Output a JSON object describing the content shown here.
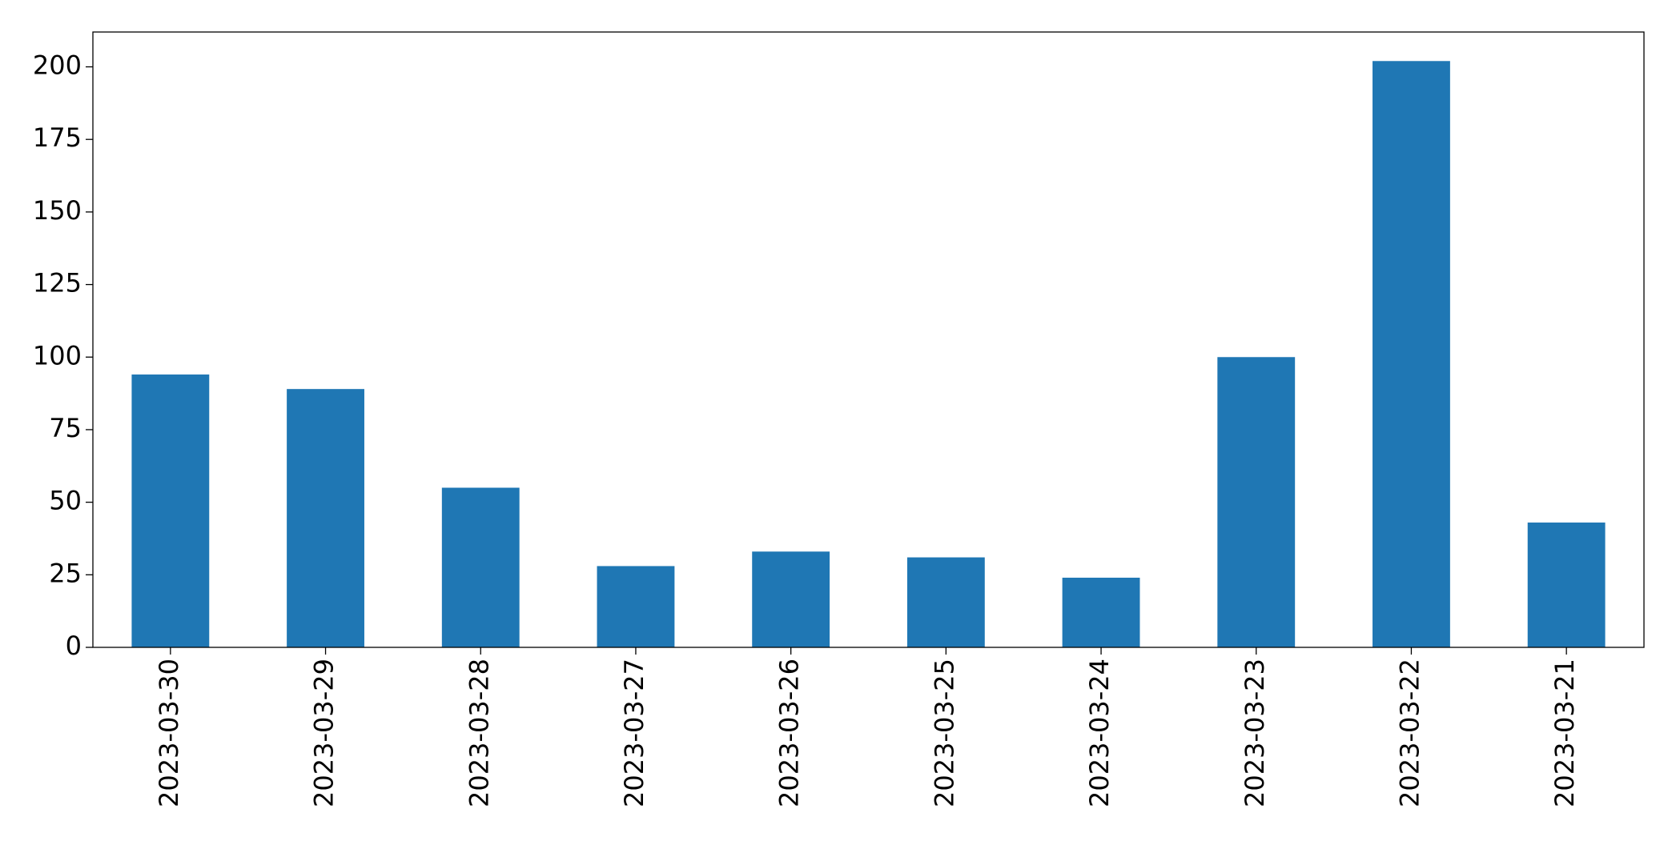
{
  "chart_data": {
    "type": "bar",
    "categories": [
      "2023-03-30",
      "2023-03-29",
      "2023-03-28",
      "2023-03-27",
      "2023-03-26",
      "2023-03-25",
      "2023-03-24",
      "2023-03-23",
      "2023-03-22",
      "2023-03-21"
    ],
    "values": [
      94,
      89,
      55,
      28,
      33,
      31,
      24,
      100,
      202,
      43
    ],
    "color": "#1f77b4",
    "ylim": [
      0,
      212
    ],
    "yticks": [
      0,
      25,
      50,
      75,
      100,
      125,
      150,
      175,
      200
    ],
    "grid": false
  }
}
